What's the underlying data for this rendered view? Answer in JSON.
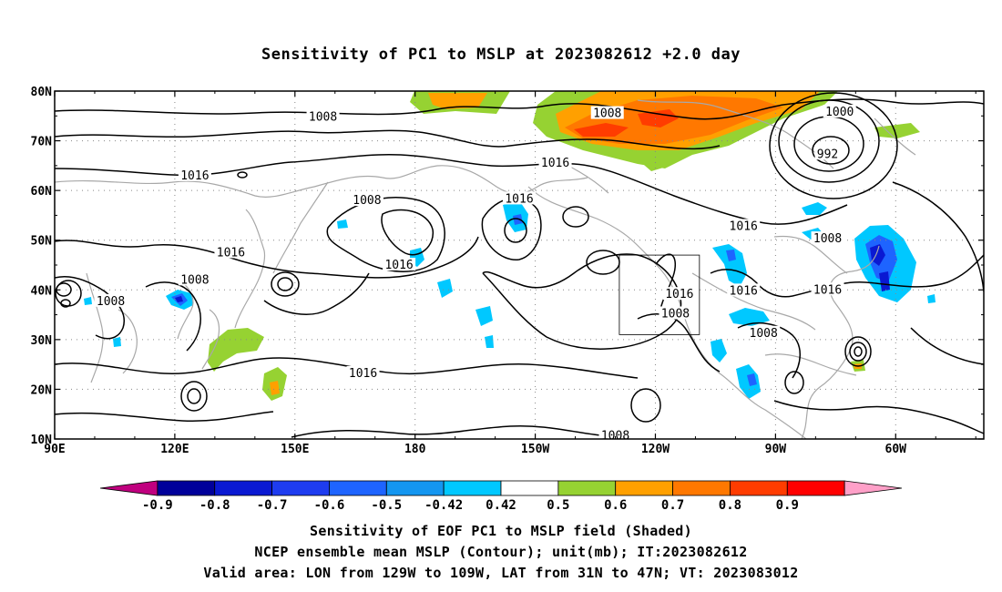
{
  "title": "Sensitivity of PC1 to MSLP at 2023082612 +2.0 day",
  "axes": {
    "lon_ticks": [
      "90E",
      "120E",
      "150E",
      "180",
      "150W",
      "120W",
      "90W",
      "60W"
    ],
    "lon_values": [
      90,
      120,
      150,
      180,
      210,
      240,
      270,
      300
    ],
    "lat_ticks": [
      "10N",
      "20N",
      "30N",
      "40N",
      "50N",
      "60N",
      "70N",
      "80N"
    ],
    "lat_values": [
      10,
      20,
      30,
      40,
      50,
      60,
      70,
      80
    ],
    "lon_range": [
      90,
      322
    ],
    "lat_range": [
      10,
      80
    ],
    "grid": "dotted"
  },
  "colorbar": {
    "labels": [
      "-0.9",
      "-0.8",
      "-0.7",
      "-0.6",
      "-0.5",
      "-0.42",
      "0.42",
      "0.5",
      "0.6",
      "0.7",
      "0.8",
      "0.9"
    ],
    "colors": [
      "#c0007f",
      "#00009a",
      "#0a19d2",
      "#1e3cf0",
      "#1e64ff",
      "#1496f0",
      "#00c8ff",
      "#ffffff",
      "#96d232",
      "#ffa000",
      "#ff7800",
      "#ff3c00",
      "#ff0000",
      "#ffa0c8"
    ]
  },
  "contour_labels": [
    {
      "text": "1008",
      "lon": 157,
      "lat": 74.8
    },
    {
      "text": "1008",
      "lon": 228,
      "lat": 75.5
    },
    {
      "text": "1000",
      "lon": 286,
      "lat": 75.8
    },
    {
      "text": "992",
      "lon": 283,
      "lat": 67.3
    },
    {
      "text": "1016",
      "lon": 125,
      "lat": 63
    },
    {
      "text": "1016",
      "lon": 215,
      "lat": 65.5
    },
    {
      "text": "1008",
      "lon": 168,
      "lat": 58
    },
    {
      "text": "1016",
      "lon": 206,
      "lat": 58.3
    },
    {
      "text": "1016",
      "lon": 262,
      "lat": 52.8
    },
    {
      "text": "1008",
      "lon": 283,
      "lat": 50.3
    },
    {
      "text": "1016",
      "lon": 134,
      "lat": 47.5
    },
    {
      "text": "1016",
      "lon": 176,
      "lat": 45
    },
    {
      "text": "1008",
      "lon": 125,
      "lat": 42
    },
    {
      "text": "1008",
      "lon": 104,
      "lat": 37.7
    },
    {
      "text": "1016",
      "lon": 246,
      "lat": 39.1
    },
    {
      "text": "1016",
      "lon": 262,
      "lat": 39.8
    },
    {
      "text": "1016",
      "lon": 283,
      "lat": 40
    },
    {
      "text": "1008",
      "lon": 245,
      "lat": 35.2
    },
    {
      "text": "1008",
      "lon": 267,
      "lat": 31.3
    },
    {
      "text": "1016",
      "lon": 167,
      "lat": 23.2
    },
    {
      "text": "1008",
      "lon": 230,
      "lat": 10.6
    }
  ],
  "valid_box": {
    "lon_min": 231,
    "lon_max": 251,
    "lat_min": 31,
    "lat_max": 47
  },
  "captions": {
    "line1": "Sensitivity of EOF PC1 to MSLP field (Shaded)",
    "line2": "NCEP ensemble mean MSLP (Contour); unit(mb); IT:2023082612",
    "line3": "Valid area: LON from 129W to 109W, LAT from 31N to 47N; VT: 2023083012"
  }
}
